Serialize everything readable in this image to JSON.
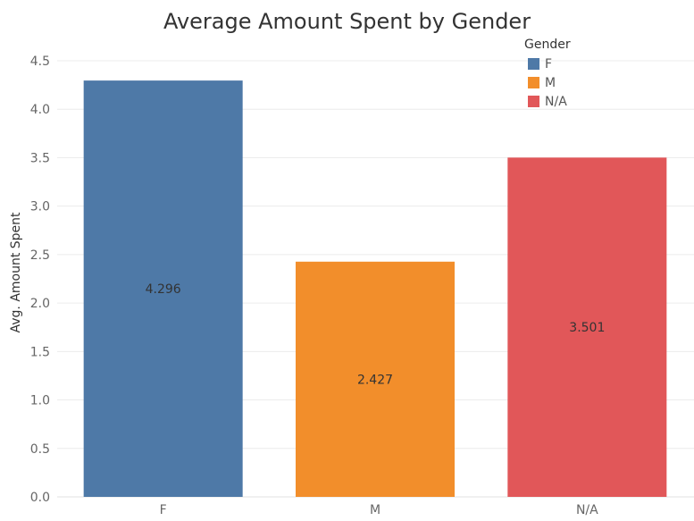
{
  "chart_data": {
    "type": "bar",
    "title": "Average Amount Spent by Gender",
    "xlabel": "",
    "ylabel": "Avg. Amount Spent",
    "categories": [
      "F",
      "M",
      "N/A"
    ],
    "values": [
      4.296,
      2.427,
      3.501
    ],
    "data_labels": [
      "4.296",
      "2.427",
      "3.501"
    ],
    "colors": [
      "#4e79a7",
      "#f28e2b",
      "#e15759"
    ],
    "ylim": [
      0,
      4.5
    ],
    "yticks": [
      0,
      0.5,
      1.0,
      1.5,
      2.0,
      2.5,
      3.0,
      3.5,
      4.0,
      4.5
    ],
    "ytick_labels": [
      "0.0",
      "0.5",
      "1.0",
      "1.5",
      "2.0",
      "2.5",
      "3.0",
      "3.5",
      "4.0",
      "4.5"
    ],
    "grid": true,
    "legend": {
      "title": "Gender",
      "placement": "top-right",
      "entries": [
        "F",
        "M",
        "N/A"
      ]
    }
  }
}
